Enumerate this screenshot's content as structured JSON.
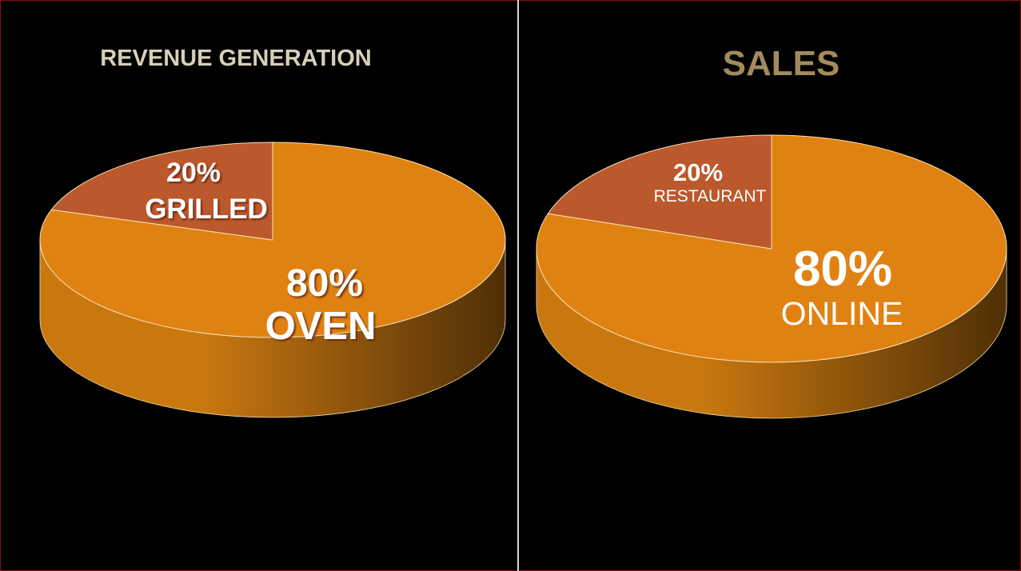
{
  "colors": {
    "main_slice": "#e08211",
    "minor_slice": "#bb582c",
    "side_light": "#c9780f",
    "side_dark": "#4f2f06",
    "title_revenue": "#d8cfb8",
    "title_sales": "#a38a5e",
    "label_text": "#ffffff"
  },
  "chart_data": [
    {
      "type": "pie",
      "style": "3d",
      "title": "REVENUE GENERATION",
      "categories": [
        "GRILLED",
        "OVEN"
      ],
      "values": [
        20,
        80
      ],
      "data_labels": [
        {
          "value_text": "20%",
          "name": "GRILLED"
        },
        {
          "value_text": "80%",
          "name": "OVEN"
        }
      ],
      "legend": "none"
    },
    {
      "type": "pie",
      "style": "3d",
      "title": "SALES",
      "categories": [
        "RESTAURANT",
        "ONLINE"
      ],
      "values": [
        20,
        80
      ],
      "data_labels": [
        {
          "value_text": "20%",
          "name": "RESTAURANT"
        },
        {
          "value_text": "80%",
          "name": "ONLINE"
        }
      ],
      "legend": "none"
    }
  ]
}
